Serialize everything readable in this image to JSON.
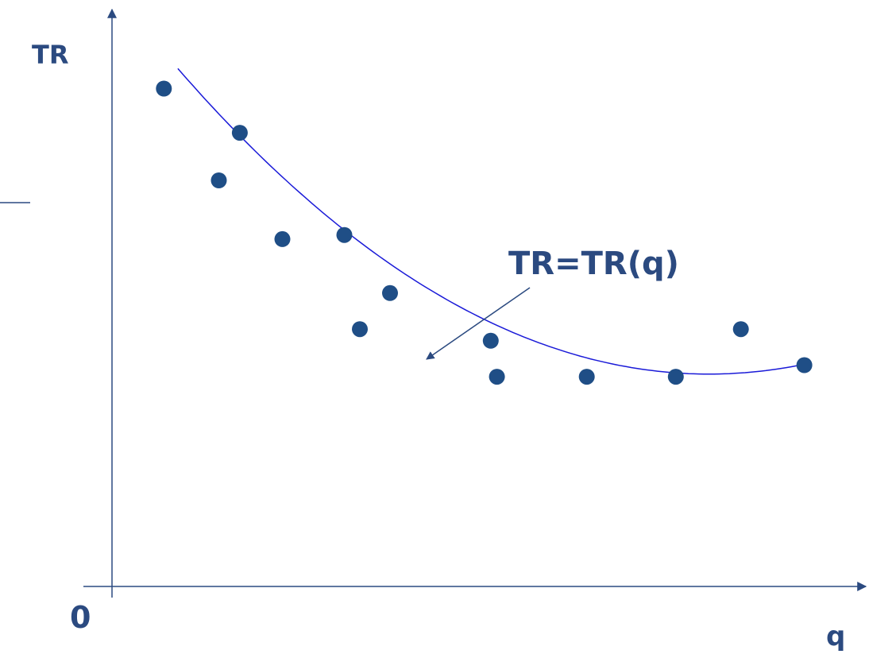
{
  "chart_data": {
    "type": "scatter",
    "title": "",
    "ylabel": "TR",
    "xlabel": "q",
    "origin_label": "0",
    "annotation": "TR=TR(q)",
    "grid": false,
    "legend": "none",
    "points": [
      {
        "x": 0.67,
        "y": 8.57
      },
      {
        "x": 1.38,
        "y": 6.99
      },
      {
        "x": 1.65,
        "y": 7.81
      },
      {
        "x": 2.2,
        "y": 5.98
      },
      {
        "x": 3.0,
        "y": 6.05
      },
      {
        "x": 3.2,
        "y": 4.43
      },
      {
        "x": 3.59,
        "y": 5.05
      },
      {
        "x": 4.89,
        "y": 4.23
      },
      {
        "x": 4.97,
        "y": 3.61
      },
      {
        "x": 6.13,
        "y": 3.61
      },
      {
        "x": 7.28,
        "y": 3.61
      },
      {
        "x": 8.12,
        "y": 4.43
      },
      {
        "x": 8.94,
        "y": 3.81
      }
    ],
    "fit_curve": {
      "type": "quadratic",
      "x_range": [
        0.85,
        8.84
      ],
      "coefficients": {
        "a": 0.1118,
        "b": -1.7237,
        "c": 10.3
      }
    },
    "colors": {
      "points": "#1f4e86",
      "curve": "#1a1ad8",
      "axes": "#2b4a80",
      "text": "#2b4a80"
    }
  }
}
